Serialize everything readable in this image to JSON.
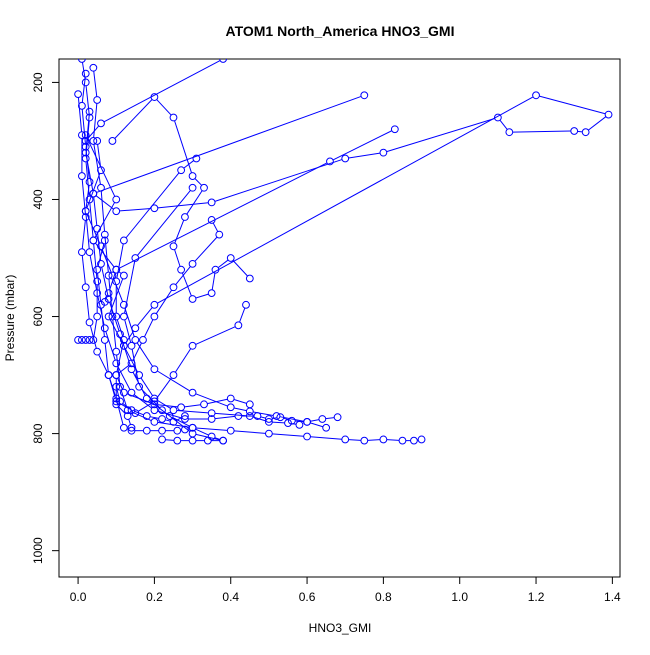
{
  "chart_data": {
    "type": "line",
    "title": "ATOM1 North_America HNO3_GMI",
    "xlabel": "HNO3_GMI",
    "ylabel": "Pressure (mbar)",
    "xlim": [
      -0.05,
      1.42
    ],
    "ylim": [
      1045,
      160
    ],
    "y_reversed": true,
    "x_ticks": [
      0.0,
      0.2,
      0.4,
      0.6,
      0.8,
      1.0,
      1.2,
      1.4
    ],
    "x_tick_labels": [
      "0.0",
      "0.2",
      "0.4",
      "0.6",
      "0.8",
      "1.0",
      "1.2",
      "1.4"
    ],
    "y_ticks": [
      200,
      400,
      600,
      800,
      1000
    ],
    "y_tick_labels": [
      "200",
      "400",
      "600",
      "800",
      "1000"
    ],
    "grid": false,
    "legend": "none",
    "marker": "open-circle",
    "series_color": "#0000ff",
    "series": [
      {
        "points": [
          [
            0.01,
            160
          ],
          [
            0.02,
            200
          ],
          [
            0.03,
            260
          ],
          [
            0.02,
            330
          ],
          [
            0.03,
            400
          ],
          [
            0.04,
            470
          ],
          [
            0.05,
            540
          ],
          [
            0.05,
            600
          ],
          [
            0.04,
            640
          ],
          [
            0.03,
            640
          ],
          [
            0.02,
            640
          ],
          [
            0.01,
            640
          ],
          [
            0.0,
            640
          ]
        ]
      },
      {
        "points": [
          [
            0.04,
            175
          ],
          [
            0.05,
            230
          ],
          [
            0.04,
            300
          ],
          [
            0.06,
            380
          ],
          [
            0.07,
            460
          ],
          [
            0.08,
            530
          ],
          [
            0.09,
            600
          ],
          [
            0.1,
            660
          ],
          [
            0.11,
            720
          ],
          [
            0.13,
            760
          ],
          [
            0.2,
            780
          ],
          [
            0.3,
            790
          ],
          [
            0.4,
            795
          ],
          [
            0.5,
            800
          ],
          [
            0.6,
            805
          ],
          [
            0.7,
            810
          ],
          [
            0.75,
            812
          ],
          [
            0.8,
            810
          ],
          [
            0.85,
            812
          ],
          [
            0.88,
            812
          ],
          [
            0.9,
            810
          ]
        ]
      },
      {
        "points": [
          [
            0.02,
            185
          ],
          [
            0.01,
            240
          ],
          [
            0.02,
            310
          ],
          [
            0.03,
            370
          ],
          [
            0.02,
            420
          ],
          [
            0.03,
            490
          ],
          [
            0.05,
            560
          ],
          [
            0.07,
            620
          ],
          [
            0.1,
            680
          ],
          [
            0.14,
            730
          ],
          [
            0.2,
            760
          ],
          [
            0.28,
            775
          ],
          [
            0.35,
            775
          ],
          [
            0.42,
            770
          ],
          [
            0.47,
            770
          ],
          [
            0.5,
            775
          ],
          [
            0.53,
            772
          ],
          [
            0.56,
            778
          ],
          [
            0.6,
            780
          ],
          [
            0.64,
            775
          ],
          [
            0.68,
            772
          ]
        ]
      },
      {
        "points": [
          [
            0.0,
            220
          ],
          [
            0.01,
            290
          ],
          [
            0.01,
            360
          ],
          [
            0.02,
            430
          ],
          [
            0.01,
            490
          ],
          [
            0.02,
            550
          ],
          [
            0.03,
            610
          ],
          [
            0.05,
            660
          ],
          [
            0.08,
            700
          ],
          [
            0.1,
            740
          ],
          [
            0.12,
            790
          ],
          [
            0.14,
            795
          ],
          [
            0.18,
            795
          ],
          [
            0.22,
            795
          ],
          [
            0.26,
            795
          ],
          [
            0.28,
            793
          ]
        ]
      },
      {
        "points": [
          [
            0.03,
            250
          ],
          [
            0.02,
            320
          ],
          [
            0.04,
            390
          ],
          [
            0.05,
            450
          ],
          [
            0.06,
            510
          ],
          [
            0.08,
            570
          ],
          [
            0.11,
            630
          ],
          [
            0.14,
            690
          ],
          [
            0.18,
            740
          ],
          [
            0.24,
            770
          ],
          [
            0.3,
            790
          ],
          [
            0.35,
            805
          ],
          [
            0.38,
            812
          ],
          [
            0.34,
            812
          ],
          [
            0.3,
            812
          ],
          [
            0.26,
            812
          ],
          [
            0.22,
            810
          ]
        ]
      },
      {
        "points": [
          [
            0.02,
            290
          ],
          [
            0.1,
            400
          ],
          [
            0.04,
            470
          ],
          [
            0.1,
            520
          ],
          [
            0.12,
            530
          ],
          [
            0.08,
            600
          ],
          [
            0.12,
            650
          ],
          [
            0.16,
            700
          ],
          [
            0.2,
            740
          ],
          [
            0.25,
            760
          ],
          [
            0.35,
            765
          ],
          [
            0.45,
            770
          ],
          [
            0.5,
            780
          ],
          [
            0.55,
            782
          ],
          [
            0.58,
            785
          ]
        ]
      },
      {
        "points": [
          [
            0.05,
            300
          ],
          [
            0.06,
            350
          ],
          [
            0.02,
            420
          ],
          [
            0.06,
            480
          ],
          [
            0.09,
            530
          ],
          [
            0.12,
            580
          ],
          [
            0.15,
            640
          ],
          [
            0.2,
            690
          ],
          [
            0.3,
            730
          ],
          [
            0.4,
            755
          ],
          [
            0.45,
            762
          ],
          [
            0.52,
            770
          ],
          [
            0.6,
            780
          ],
          [
            0.65,
            790
          ]
        ]
      },
      {
        "points": [
          [
            0.09,
            300
          ],
          [
            0.2,
            225
          ],
          [
            0.25,
            260
          ],
          [
            0.3,
            360
          ],
          [
            0.33,
            380
          ],
          [
            0.28,
            430
          ],
          [
            0.25,
            480
          ],
          [
            0.27,
            520
          ],
          [
            0.3,
            570
          ],
          [
            0.35,
            560
          ],
          [
            0.36,
            520
          ],
          [
            0.4,
            500
          ],
          [
            0.45,
            535
          ]
        ]
      },
      {
        "points": [
          [
            0.38,
            160
          ],
          [
            0.06,
            270
          ],
          [
            0.02,
            300
          ]
        ]
      },
      {
        "points": [
          [
            0.75,
            222
          ],
          [
            0.04,
            390
          ],
          [
            0.1,
            420
          ],
          [
            0.2,
            415
          ],
          [
            0.35,
            405
          ],
          [
            0.7,
            330
          ],
          [
            0.8,
            320
          ],
          [
            1.1,
            260
          ],
          [
            1.13,
            285
          ],
          [
            1.3,
            283
          ],
          [
            1.33,
            285
          ],
          [
            1.39,
            255
          ],
          [
            1.2,
            222
          ],
          [
            0.2,
            580
          ],
          [
            0.15,
            620
          ],
          [
            0.12,
            650
          ]
        ]
      },
      {
        "points": [
          [
            0.83,
            280
          ],
          [
            0.66,
            335
          ],
          [
            0.1,
            520
          ],
          [
            0.08,
            560
          ],
          [
            0.07,
            575
          ]
        ]
      },
      {
        "points": [
          [
            0.3,
            380
          ],
          [
            0.15,
            500
          ],
          [
            0.12,
            600
          ],
          [
            0.14,
            650
          ],
          [
            0.16,
            720
          ],
          [
            0.22,
            760
          ],
          [
            0.3,
            800
          ],
          [
            0.38,
            812
          ]
        ]
      },
      {
        "points": [
          [
            0.31,
            330
          ],
          [
            0.27,
            350
          ],
          [
            0.12,
            470
          ],
          [
            0.1,
            540
          ],
          [
            0.1,
            600
          ],
          [
            0.12,
            640
          ],
          [
            0.1,
            700
          ],
          [
            0.1,
            750
          ],
          [
            0.13,
            770
          ],
          [
            0.14,
            790
          ]
        ]
      },
      {
        "points": [
          [
            0.35,
            435
          ],
          [
            0.37,
            460
          ],
          [
            0.3,
            510
          ],
          [
            0.25,
            550
          ],
          [
            0.2,
            600
          ],
          [
            0.17,
            640
          ],
          [
            0.14,
            680
          ],
          [
            0.1,
            700
          ],
          [
            0.12,
            730
          ],
          [
            0.2,
            750
          ],
          [
            0.27,
            755
          ],
          [
            0.33,
            750
          ],
          [
            0.4,
            740
          ],
          [
            0.45,
            750
          ]
        ]
      },
      {
        "points": [
          [
            0.07,
            470
          ],
          [
            0.05,
            520
          ],
          [
            0.06,
            580
          ],
          [
            0.07,
            640
          ],
          [
            0.08,
            700
          ],
          [
            0.1,
            745
          ],
          [
            0.14,
            760
          ],
          [
            0.18,
            770
          ],
          [
            0.22,
            775
          ],
          [
            0.25,
            780
          ],
          [
            0.28,
            770
          ]
        ]
      },
      {
        "points": [
          [
            0.44,
            580
          ],
          [
            0.42,
            615
          ],
          [
            0.3,
            650
          ],
          [
            0.25,
            700
          ],
          [
            0.2,
            745
          ],
          [
            0.15,
            765
          ],
          [
            0.11,
            745
          ],
          [
            0.1,
            720
          ]
        ]
      }
    ]
  }
}
